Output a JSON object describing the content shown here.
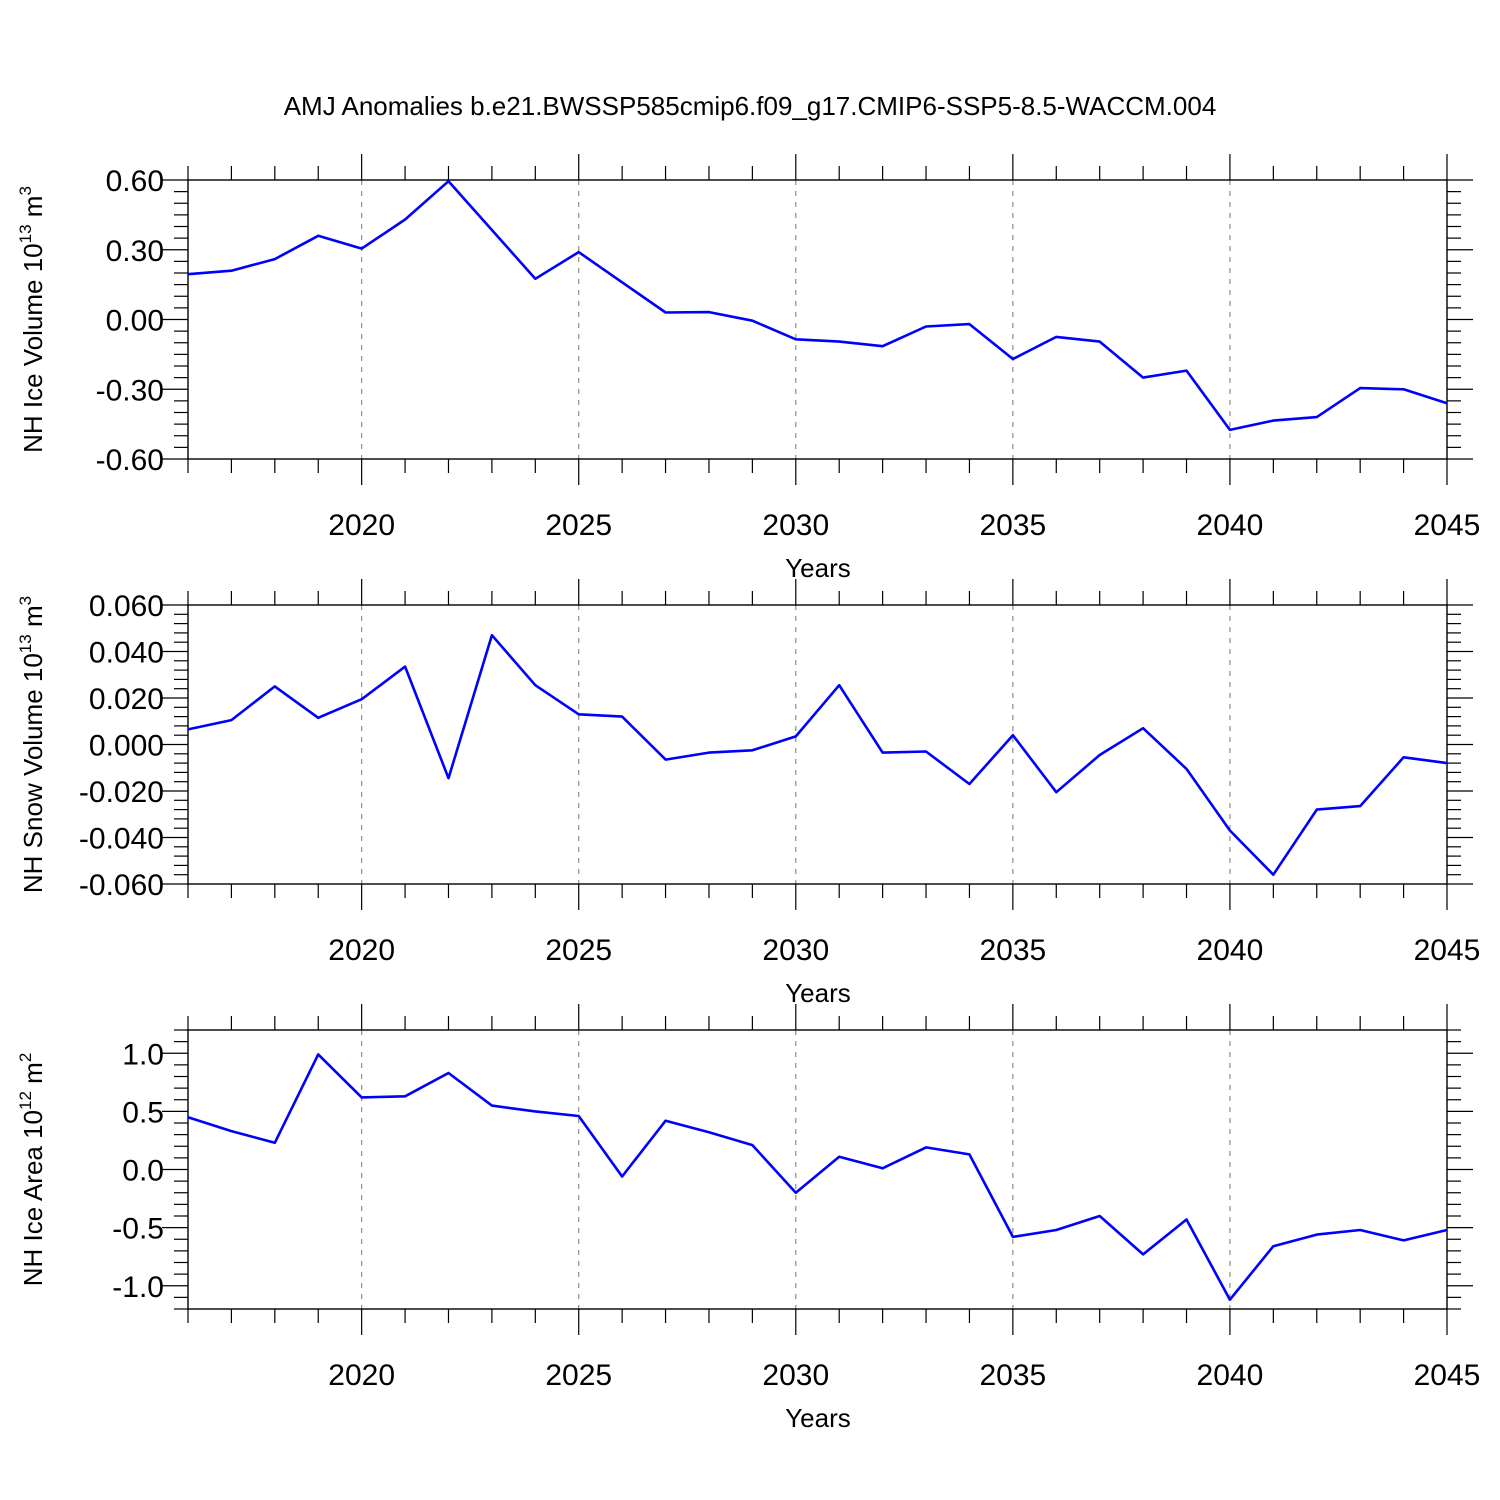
{
  "title": "AMJ Anomalies b.e21.BWSSP585cmip6.f09_g17.CMIP6-SSP5-8.5-WACCM.004",
  "line_color": "#0000ff",
  "chart_data": [
    {
      "type": "line",
      "ylabel_main": "NH Ice Volume 10",
      "ylabel_exp": "13",
      "ylabel_unit": " m",
      "ylabel_unit_exp": "3",
      "xlabel": "Years",
      "xlim": [
        2016,
        2045
      ],
      "xticks": [
        2020,
        2025,
        2030,
        2035,
        2040,
        2045
      ],
      "ylim": [
        -0.6,
        0.6
      ],
      "yticks": [
        -0.6,
        -0.3,
        0.0,
        0.3,
        0.6
      ],
      "ytick_labels": [
        "-0.60",
        "-0.30",
        "0.00",
        "0.30",
        "0.60"
      ],
      "grid": "x-dashed",
      "x": [
        2016,
        2017,
        2018,
        2019,
        2020,
        2021,
        2022,
        2023,
        2024,
        2025,
        2026,
        2027,
        2028,
        2029,
        2030,
        2031,
        2032,
        2033,
        2034,
        2035,
        2036,
        2037,
        2038,
        2039,
        2040,
        2041,
        2042,
        2043,
        2044,
        2045
      ],
      "values": [
        0.195,
        0.21,
        0.26,
        0.36,
        0.305,
        0.43,
        0.595,
        0.385,
        0.175,
        0.29,
        0.16,
        0.03,
        0.032,
        -0.005,
        -0.085,
        -0.095,
        -0.115,
        -0.03,
        -0.02,
        -0.17,
        -0.075,
        -0.095,
        -0.25,
        -0.22,
        -0.475,
        -0.435,
        -0.42,
        -0.295,
        -0.3,
        -0.36
      ]
    },
    {
      "type": "line",
      "ylabel_main": "NH Snow Volume 10",
      "ylabel_exp": "13",
      "ylabel_unit": " m",
      "ylabel_unit_exp": "3",
      "xlabel": "Years",
      "xlim": [
        2016,
        2045
      ],
      "xticks": [
        2020,
        2025,
        2030,
        2035,
        2040,
        2045
      ],
      "ylim": [
        -0.06,
        0.06
      ],
      "yticks": [
        -0.06,
        -0.04,
        -0.02,
        0.0,
        0.02,
        0.04,
        0.06
      ],
      "ytick_labels": [
        "-0.060",
        "-0.040",
        "-0.020",
        "0.000",
        "0.020",
        "0.040",
        "0.060"
      ],
      "grid": "x-dashed",
      "x": [
        2016,
        2017,
        2018,
        2019,
        2020,
        2021,
        2022,
        2023,
        2024,
        2025,
        2026,
        2027,
        2028,
        2029,
        2030,
        2031,
        2032,
        2033,
        2034,
        2035,
        2036,
        2037,
        2038,
        2039,
        2040,
        2041,
        2042,
        2043,
        2044,
        2045
      ],
      "values": [
        0.0065,
        0.0105,
        0.025,
        0.0115,
        0.0195,
        0.0335,
        -0.0145,
        0.047,
        0.0255,
        0.013,
        0.012,
        -0.0065,
        -0.0035,
        -0.0025,
        0.0035,
        0.0255,
        -0.0035,
        -0.003,
        -0.017,
        0.004,
        -0.0205,
        -0.0045,
        0.007,
        -0.0105,
        -0.037,
        -0.056,
        -0.028,
        -0.0265,
        -0.0055,
        -0.008
      ]
    },
    {
      "type": "line",
      "ylabel_main": "NH Ice Area 10",
      "ylabel_exp": "12",
      "ylabel_unit": " m",
      "ylabel_unit_exp": "2",
      "xlabel": "Years",
      "xlim": [
        2016,
        2045
      ],
      "xticks": [
        2020,
        2025,
        2030,
        2035,
        2040,
        2045
      ],
      "ylim": [
        -1.2,
        1.2
      ],
      "yticks": [
        -1.0,
        -0.5,
        0.0,
        0.5,
        1.0
      ],
      "ytick_labels": [
        "-1.0",
        "-0.5",
        "0.0",
        "0.5",
        "1.0"
      ],
      "grid": "x-dashed",
      "x": [
        2016,
        2017,
        2018,
        2019,
        2020,
        2021,
        2022,
        2023,
        2024,
        2025,
        2026,
        2027,
        2028,
        2029,
        2030,
        2031,
        2032,
        2033,
        2034,
        2035,
        2036,
        2037,
        2038,
        2039,
        2040,
        2041,
        2042,
        2043,
        2044,
        2045
      ],
      "values": [
        0.45,
        0.33,
        0.23,
        0.99,
        0.62,
        0.63,
        0.83,
        0.55,
        0.5,
        0.46,
        -0.06,
        0.42,
        0.32,
        0.21,
        -0.2,
        0.11,
        0.01,
        0.19,
        0.13,
        -0.58,
        -0.52,
        -0.4,
        -0.73,
        -0.43,
        -1.12,
        -0.66,
        -0.56,
        -0.52,
        -0.61,
        -0.52
      ]
    }
  ]
}
